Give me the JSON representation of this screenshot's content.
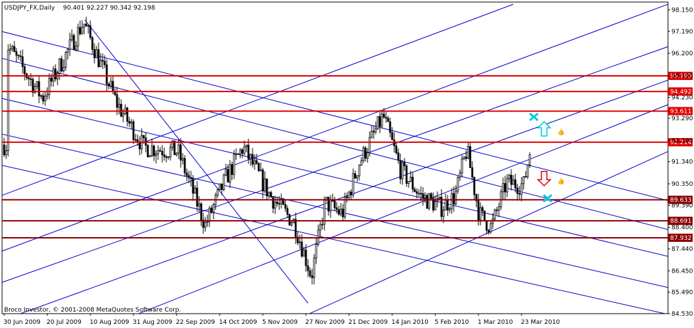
{
  "header": {
    "symbol": "USDJPY_FX,Daily",
    "ohlc": "90.401 92.227 90.342 92.198"
  },
  "footer": {
    "copyright": "Broco Investor, © 2001-2008 MetaQuotes Software Corp."
  },
  "colors": {
    "background": "#ffffff",
    "candle": "#000000",
    "channel_lines": "#0000cc",
    "level_red": "#e00000",
    "level_dark": "#8b0000",
    "label_fg": "#ffffff",
    "cyan_markers": "#00c8e0",
    "down_arrow": "#e00000"
  },
  "chart_data": {
    "type": "candlestick",
    "symbol": "USDJPY_FX",
    "timeframe": "Daily",
    "ylim": [
      84.53,
      98.5
    ],
    "y_ticks": [
      {
        "v": 98.15,
        "t": "98.150"
      },
      {
        "v": 97.19,
        "t": "97.190"
      },
      {
        "v": 96.2,
        "t": "96.200"
      },
      {
        "v": 95.19,
        "t": "95.190"
      },
      {
        "v": 94.23,
        "t": "94.230"
      },
      {
        "v": 93.29,
        "t": "93.290"
      },
      {
        "v": 92.3,
        "t": "92.300"
      },
      {
        "v": 91.34,
        "t": "91.340"
      },
      {
        "v": 90.35,
        "t": "90.350"
      },
      {
        "v": 89.39,
        "t": "89.390"
      },
      {
        "v": 88.4,
        "t": "88.400"
      },
      {
        "v": 87.44,
        "t": "87.440"
      },
      {
        "v": 86.45,
        "t": "86.450"
      },
      {
        "v": 85.49,
        "t": "85.490"
      },
      {
        "v": 84.53,
        "t": "84.530"
      }
    ],
    "x_labels": [
      "30 Jun 2009",
      "20 Jul 2009",
      "10 Aug 2009",
      "31 Aug 2009",
      "22 Sep 2009",
      "14 Oct 2009",
      "5 Nov 2009",
      "27 Nov 2009",
      "21 Dec 2009",
      "14 Jan 2010",
      "5 Feb 2010",
      "1 Mar 2010",
      "23 Mar 2010"
    ],
    "levels": [
      {
        "price": 95.19,
        "label": "95.190",
        "style": "red"
      },
      {
        "price": 94.492,
        "label": "94.492",
        "style": "red"
      },
      {
        "price": 93.611,
        "label": "93.611",
        "style": "red"
      },
      {
        "price": 92.214,
        "label": "92.214",
        "style": "red"
      },
      {
        "price": 89.633,
        "label": "89.633",
        "style": "dark"
      },
      {
        "price": 88.691,
        "label": "88.691",
        "style": "dark"
      },
      {
        "price": 87.932,
        "label": "87.932",
        "style": "dark"
      }
    ],
    "channel_lines": {
      "descending": [
        {
          "x1": 0,
          "y1": 97.2,
          "x2": 976,
          "y2": 89.6
        },
        {
          "x1": 0,
          "y1": 96.0,
          "x2": 976,
          "y2": 88.3
        },
        {
          "x1": 0,
          "y1": 94.2,
          "x2": 976,
          "y2": 87.1
        },
        {
          "x1": 0,
          "y1": 92.6,
          "x2": 976,
          "y2": 85.7
        },
        {
          "x1": 0,
          "y1": 91.2,
          "x2": 976,
          "y2": 84.5
        }
      ],
      "ascending": [
        {
          "x1": 0,
          "y1": 89.8,
          "x2": 750,
          "y2": 98.4
        },
        {
          "x1": 0,
          "y1": 87.3,
          "x2": 976,
          "y2": 98.4
        },
        {
          "x1": 0,
          "y1": 85.9,
          "x2": 976,
          "y2": 96.5
        },
        {
          "x1": 0,
          "y1": 84.2,
          "x2": 976,
          "y2": 95.0
        },
        {
          "x1": 200,
          "y1": 84.5,
          "x2": 976,
          "y2": 93.9
        },
        {
          "x1": 450,
          "y1": 84.5,
          "x2": 976,
          "y2": 91.8
        }
      ],
      "crossing": [
        {
          "x1": 124,
          "y1": 97.7,
          "x2": 450,
          "y2": 85.0
        }
      ]
    },
    "anchors": [
      {
        "x": 12,
        "y": 96.5
      },
      {
        "x": 62,
        "y": 94.2
      },
      {
        "x": 122,
        "y": 97.6
      },
      {
        "x": 170,
        "y": 94.0
      },
      {
        "x": 210,
        "y": 92.0
      },
      {
        "x": 260,
        "y": 91.8
      },
      {
        "x": 300,
        "y": 88.5
      },
      {
        "x": 330,
        "y": 90.6
      },
      {
        "x": 355,
        "y": 92.0
      },
      {
        "x": 395,
        "y": 89.8
      },
      {
        "x": 430,
        "y": 88.6
      },
      {
        "x": 455,
        "y": 86.2
      },
      {
        "x": 475,
        "y": 89.5
      },
      {
        "x": 500,
        "y": 89.0
      },
      {
        "x": 525,
        "y": 91.3
      },
      {
        "x": 560,
        "y": 93.4
      },
      {
        "x": 585,
        "y": 91.0
      },
      {
        "x": 615,
        "y": 89.8
      },
      {
        "x": 645,
        "y": 89.3
      },
      {
        "x": 665,
        "y": 89.8
      },
      {
        "x": 682,
        "y": 91.9
      },
      {
        "x": 700,
        "y": 89.0
      },
      {
        "x": 718,
        "y": 88.4
      },
      {
        "x": 740,
        "y": 90.4
      },
      {
        "x": 765,
        "y": 90.3
      },
      {
        "x": 776,
        "y": 92.1
      }
    ],
    "markers": {
      "up_arrow": {
        "x": 795,
        "y": 92.8
      },
      "down_arrow": {
        "x": 795,
        "y": 90.6
      },
      "thumbs_up": [
        {
          "x": 822,
          "y": 92.8
        },
        {
          "x": 822,
          "y": 90.6
        }
      ],
      "crosses": [
        {
          "x": 780,
          "y": 93.35
        },
        {
          "x": 800,
          "y": 89.7
        }
      ]
    }
  }
}
